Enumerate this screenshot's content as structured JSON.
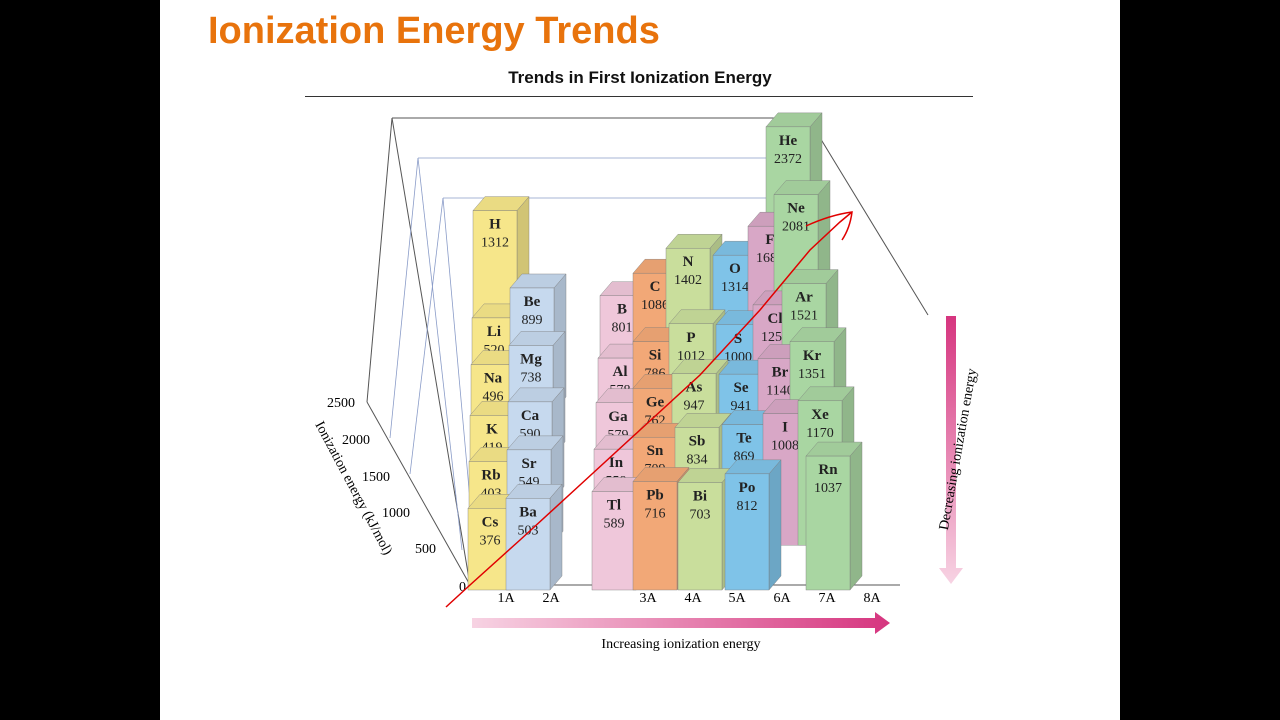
{
  "slide": {
    "title": "Ionization Energy Trends"
  },
  "chart_data": {
    "type": "bar",
    "title": "Trends in First Ionization Energy",
    "ylabel": "Ionization energy (kJ/mol)",
    "ylim": [
      0,
      2500
    ],
    "yticks": [
      "0",
      "500",
      "1000",
      "1500",
      "2000",
      "2500"
    ],
    "categories": [
      "1A",
      "2A",
      "3A",
      "4A",
      "5A",
      "6A",
      "7A",
      "8A"
    ],
    "xlabel_arrow": "Increasing ionization energy",
    "ylabel_arrow": "Decreasing ionization energy",
    "colors": {
      "1A": "#f6e68a",
      "2A": "#c6d9ee",
      "3A": "#efc7da",
      "4A": "#f2a877",
      "5A": "#c9de9c",
      "6A": "#7fc3e8",
      "7A": "#d8a7c6",
      "8A": "#a9d6a2",
      "arrow": "#d6357f",
      "annotation": "#e00000"
    },
    "elements": [
      {
        "symbol": "H",
        "value": 1312,
        "group": "1A",
        "period": 1
      },
      {
        "symbol": "He",
        "value": 2372,
        "group": "8A",
        "period": 1
      },
      {
        "symbol": "Li",
        "value": 520,
        "group": "1A",
        "period": 2
      },
      {
        "symbol": "Be",
        "value": 899,
        "group": "2A",
        "period": 2
      },
      {
        "symbol": "B",
        "value": 801,
        "group": "3A",
        "period": 2
      },
      {
        "symbol": "C",
        "value": 1086,
        "group": "4A",
        "period": 2
      },
      {
        "symbol": "N",
        "value": 1402,
        "group": "5A",
        "period": 2
      },
      {
        "symbol": "O",
        "value": 1314,
        "group": "6A",
        "period": 2
      },
      {
        "symbol": "F",
        "value": 1681,
        "group": "7A",
        "period": 2
      },
      {
        "symbol": "Ne",
        "value": 2081,
        "group": "8A",
        "period": 2
      },
      {
        "symbol": "Na",
        "value": 496,
        "group": "1A",
        "period": 3
      },
      {
        "symbol": "Mg",
        "value": 738,
        "group": "2A",
        "period": 3
      },
      {
        "symbol": "Al",
        "value": 578,
        "group": "3A",
        "period": 3
      },
      {
        "symbol": "Si",
        "value": 786,
        "group": "4A",
        "period": 3
      },
      {
        "symbol": "P",
        "value": 1012,
        "group": "5A",
        "period": 3
      },
      {
        "symbol": "S",
        "value": 1000,
        "group": "6A",
        "period": 3
      },
      {
        "symbol": "Cl",
        "value": 1251,
        "group": "7A",
        "period": 3
      },
      {
        "symbol": "Ar",
        "value": 1521,
        "group": "8A",
        "period": 3
      },
      {
        "symbol": "K",
        "value": 419,
        "group": "1A",
        "period": 4
      },
      {
        "symbol": "Ca",
        "value": 590,
        "group": "2A",
        "period": 4
      },
      {
        "symbol": "Ga",
        "value": 579,
        "group": "3A",
        "period": 4
      },
      {
        "symbol": "Ge",
        "value": 762,
        "group": "4A",
        "period": 4
      },
      {
        "symbol": "As",
        "value": 947,
        "group": "5A",
        "period": 4
      },
      {
        "symbol": "Se",
        "value": 941,
        "group": "6A",
        "period": 4
      },
      {
        "symbol": "Br",
        "value": 1140,
        "group": "7A",
        "period": 4
      },
      {
        "symbol": "Kr",
        "value": 1351,
        "group": "8A",
        "period": 4
      },
      {
        "symbol": "Rb",
        "value": 403,
        "group": "1A",
        "period": 5
      },
      {
        "symbol": "Sr",
        "value": 549,
        "group": "2A",
        "period": 5
      },
      {
        "symbol": "In",
        "value": 558,
        "group": "3A",
        "period": 5
      },
      {
        "symbol": "Sn",
        "value": 709,
        "group": "4A",
        "period": 5
      },
      {
        "symbol": "Sb",
        "value": 834,
        "group": "5A",
        "period": 5
      },
      {
        "symbol": "Te",
        "value": 869,
        "group": "6A",
        "period": 5
      },
      {
        "symbol": "I",
        "value": 1008,
        "group": "7A",
        "period": 5
      },
      {
        "symbol": "Xe",
        "value": 1170,
        "group": "8A",
        "period": 5
      },
      {
        "symbol": "Cs",
        "value": 376,
        "group": "1A",
        "period": 6
      },
      {
        "symbol": "Ba",
        "value": 503,
        "group": "2A",
        "period": 6
      },
      {
        "symbol": "Tl",
        "value": 589,
        "group": "3A",
        "period": 6
      },
      {
        "symbol": "Pb",
        "value": 716,
        "group": "4A",
        "period": 6
      },
      {
        "symbol": "Bi",
        "value": 703,
        "group": "5A",
        "period": 6
      },
      {
        "symbol": "Po",
        "value": 812,
        "group": "6A",
        "period": 6
      },
      {
        "symbol": "Rn",
        "value": 1037,
        "group": "8A",
        "period": 6
      }
    ]
  }
}
